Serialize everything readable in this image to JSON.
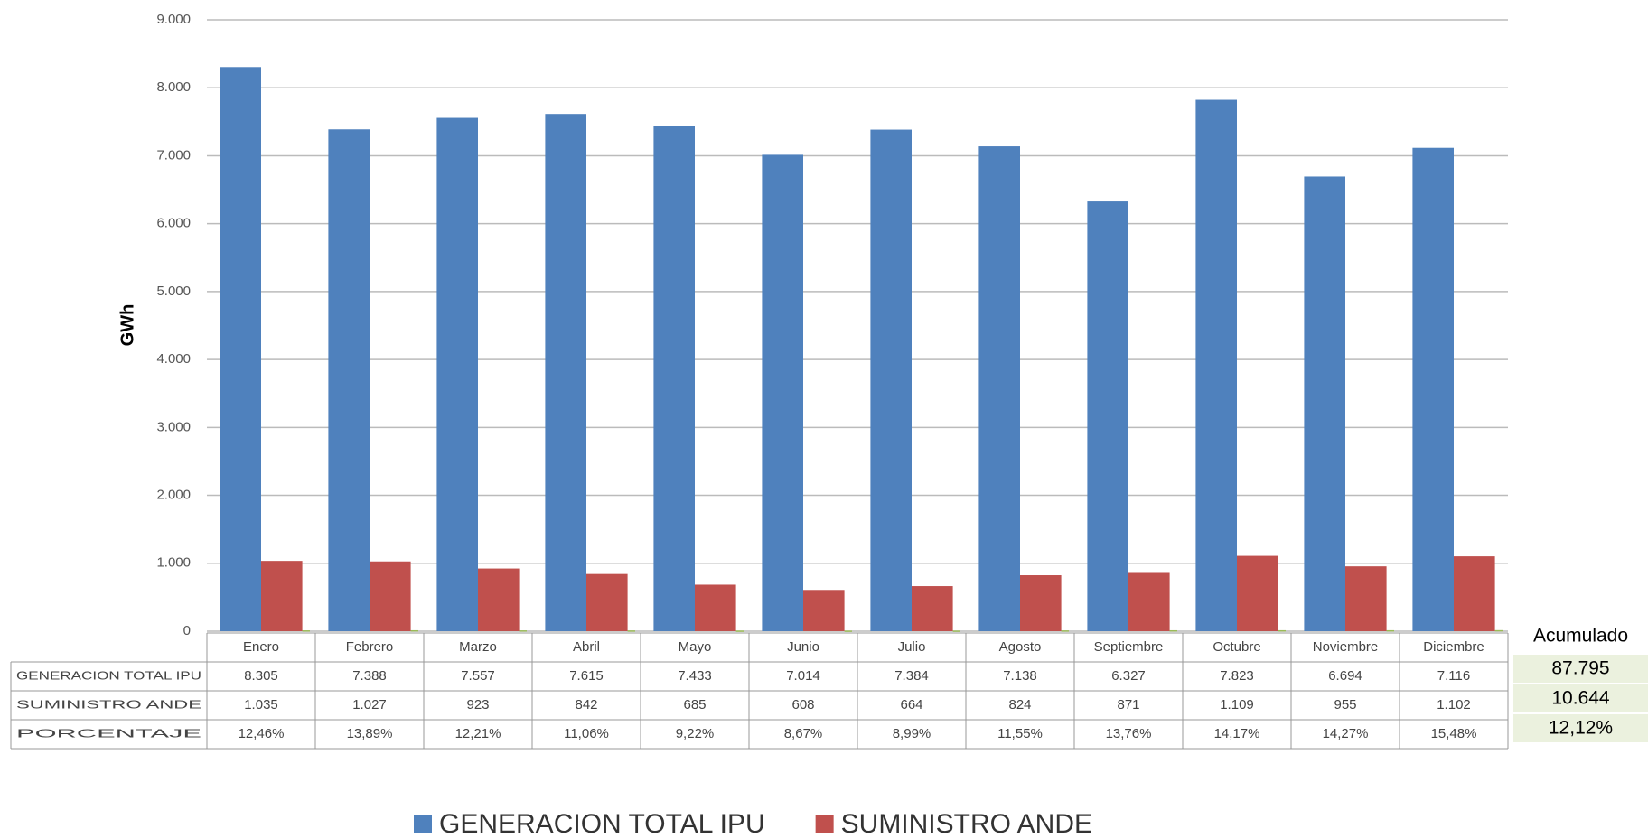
{
  "chart_data": {
    "type": "bar",
    "y_label": "GWh",
    "categories": [
      "Enero",
      "Febrero",
      "Marzo",
      "Abril",
      "Mayo",
      "Junio",
      "Julio",
      "Agosto",
      "Septiembre",
      "Octubre",
      "Noviembre",
      "Diciembre"
    ],
    "series": [
      {
        "name": "GENERACION TOTAL IPU",
        "color": "#4f81bd",
        "show_in_legend": true,
        "values": [
          8305,
          7388,
          7557,
          7615,
          7433,
          7014,
          7384,
          7138,
          6327,
          7823,
          6694,
          7116
        ],
        "value_labels": [
          "8.305",
          "7.388",
          "7.557",
          "7.615",
          "7.433",
          "7.014",
          "7.384",
          "7.138",
          "6.327",
          "7.823",
          "6.694",
          "7.116"
        ]
      },
      {
        "name": "SUMINISTRO ANDE",
        "color": "#c0504d",
        "show_in_legend": true,
        "values": [
          1035,
          1027,
          923,
          842,
          685,
          608,
          664,
          824,
          871,
          1109,
          955,
          1102
        ],
        "value_labels": [
          "1.035",
          "1.027",
          "923",
          "842",
          "685",
          "608",
          "664",
          "824",
          "871",
          "1.109",
          "955",
          "1.102"
        ]
      },
      {
        "name": "PORCENTAJE",
        "color": "#9bbb59",
        "show_in_legend": false,
        "values": [
          12.46,
          13.89,
          12.21,
          11.06,
          9.22,
          8.67,
          8.99,
          11.55,
          13.76,
          14.17,
          14.27,
          15.48
        ],
        "value_labels": [
          "12,46%",
          "13,89%",
          "12,21%",
          "11,06%",
          "9,22%",
          "8,67%",
          "8,99%",
          "11,55%",
          "13,76%",
          "14,17%",
          "14,27%",
          "15,48%"
        ]
      }
    ],
    "ylim": [
      0,
      9000
    ],
    "yticks": [
      0,
      {
        "value": 1000,
        "label": "1.000"
      },
      {
        "value": 2000,
        "label": "2.000"
      },
      {
        "value": 3000,
        "label": "3.000"
      },
      {
        "value": 4000,
        "label": "4.000"
      },
      {
        "value": 5000,
        "label": "5.000"
      },
      {
        "value": 6000,
        "label": "6.000"
      },
      {
        "value": 7000,
        "label": "7.000"
      },
      {
        "value": 8000,
        "label": "8.000"
      },
      {
        "value": 9000,
        "label": "9.000"
      }
    ],
    "grid": true,
    "totals": {
      "header": "Acumulado",
      "labels": [
        "87.795",
        "10.644",
        "12,12%"
      ]
    }
  }
}
